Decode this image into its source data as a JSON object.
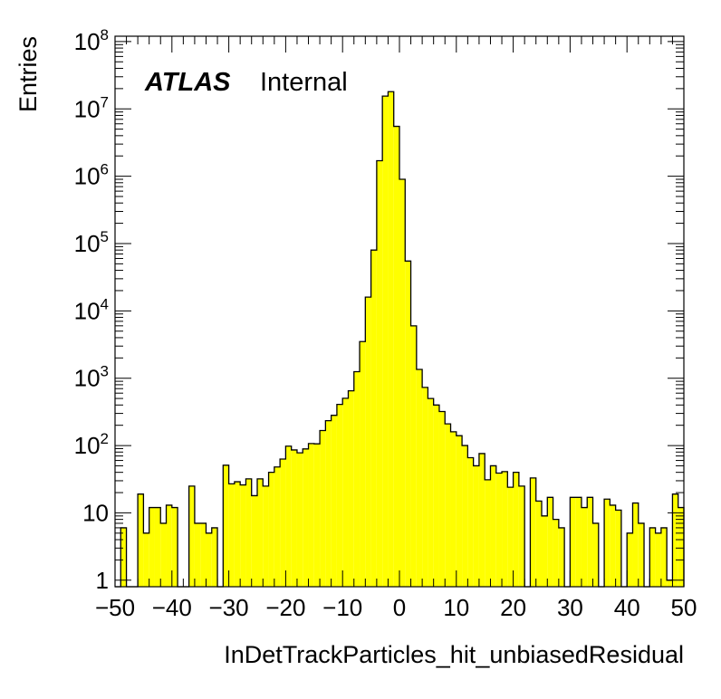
{
  "chart_data": {
    "type": "bar",
    "histogram": true,
    "title": "",
    "xlabel": "InDetTrackParticles_hit_unbiasedResidual",
    "ylabel": "Entries",
    "log_y": true,
    "xlim": [
      -50,
      50
    ],
    "ylim": [
      0.8,
      120000000
    ],
    "x_ticks": [
      "−50",
      "−40",
      "−30",
      "−20",
      "−10",
      "0",
      "10",
      "20",
      "30",
      "40",
      "50"
    ],
    "y_ticks": [
      {
        "base": "1",
        "exp": ""
      },
      {
        "base": "10",
        "exp": ""
      },
      {
        "base": "10",
        "exp": "2"
      },
      {
        "base": "10",
        "exp": "3"
      },
      {
        "base": "10",
        "exp": "4"
      },
      {
        "base": "10",
        "exp": "5"
      },
      {
        "base": "10",
        "exp": "6"
      },
      {
        "base": "10",
        "exp": "7"
      },
      {
        "base": "10",
        "exp": "8"
      }
    ],
    "bin_width": 1,
    "bin_edges_start": -50,
    "fill_color": "#ffff00",
    "line_color": "#000000",
    "values": [
      0,
      6,
      0,
      0,
      19,
      5,
      12,
      12,
      7,
      13,
      12,
      0,
      0,
      25,
      7,
      7,
      5,
      6,
      0,
      51,
      27,
      29,
      26,
      32,
      18,
      32,
      25,
      40,
      48,
      63,
      98,
      86,
      78,
      89,
      107,
      106,
      167,
      234,
      281,
      408,
      503,
      650,
      1250,
      3500,
      16000.0,
      80000.0,
      1700000.0,
      15500000.0,
      18000000.0,
      5500000.0,
      900000.0,
      55000.0,
      6000,
      1350,
      730,
      500,
      400,
      320,
      210,
      160,
      140,
      100,
      66,
      50,
      76,
      31,
      50,
      39,
      41,
      24,
      40,
      25,
      0,
      33,
      15,
      9,
      17,
      8,
      6,
      0,
      17,
      17,
      12,
      17,
      7,
      0,
      16,
      13,
      11,
      0,
      5,
      14,
      7,
      0,
      6,
      5,
      6,
      1,
      19,
      12
    ]
  },
  "plot_label": {
    "bold": "ATLAS",
    "normal": "Internal"
  }
}
